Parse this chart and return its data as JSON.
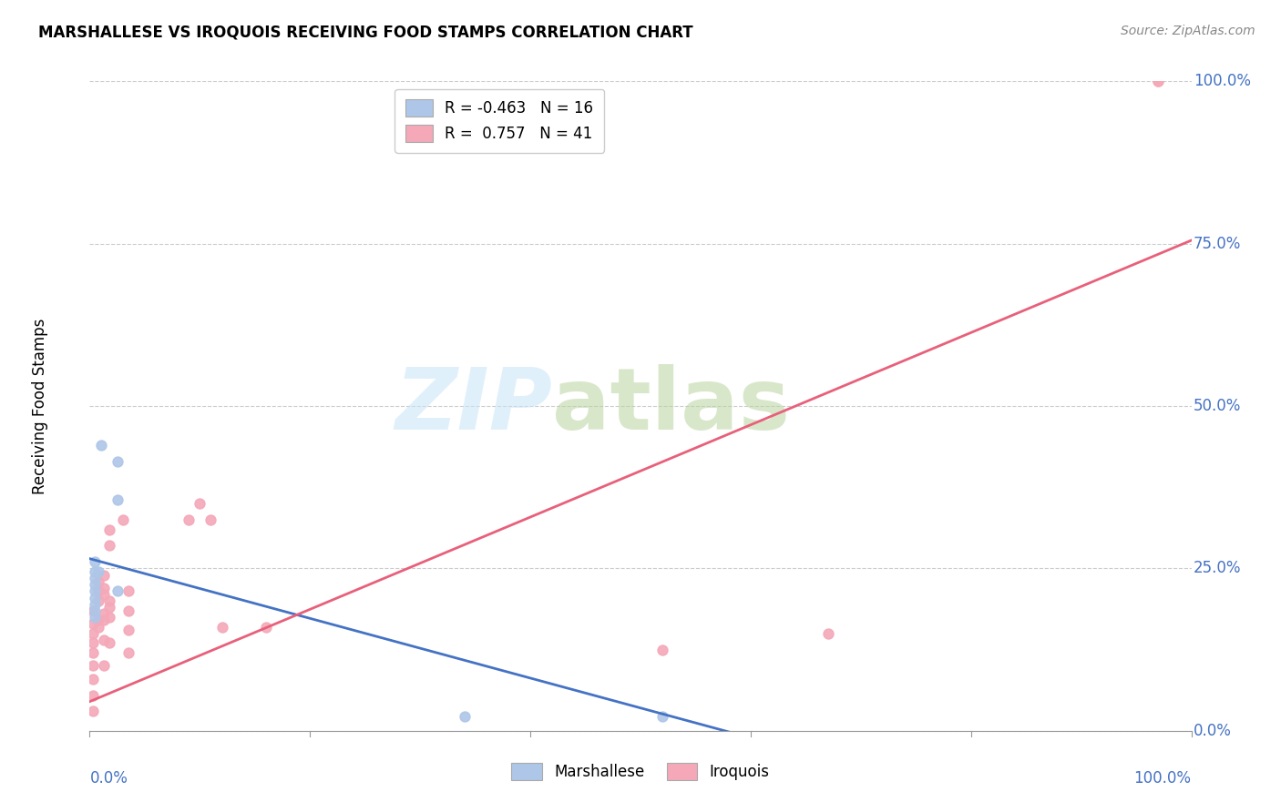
{
  "title": "MARSHALLESE VS IROQUOIS RECEIVING FOOD STAMPS CORRELATION CHART",
  "source": "Source: ZipAtlas.com",
  "ylabel": "Receiving Food Stamps",
  "ytick_values": [
    0.0,
    0.25,
    0.5,
    0.75,
    1.0
  ],
  "ytick_labels": [
    "0.0%",
    "25.0%",
    "50.0%",
    "75.0%",
    "100.0%"
  ],
  "legend_marshallese": "R = -0.463   N = 16",
  "legend_iroquois": "R =  0.757   N = 41",
  "marshallese_color": "#aec6e8",
  "iroquois_color": "#f4a8b8",
  "marshallese_line_color": "#4472c4",
  "iroquois_line_color": "#e8607a",
  "background_color": "#ffffff",
  "marshallese_points": [
    [
      0.005,
      0.245
    ],
    [
      0.005,
      0.235
    ],
    [
      0.005,
      0.225
    ],
    [
      0.005,
      0.215
    ],
    [
      0.005,
      0.205
    ],
    [
      0.005,
      0.195
    ],
    [
      0.005,
      0.185
    ],
    [
      0.005,
      0.175
    ],
    [
      0.008,
      0.245
    ],
    [
      0.01,
      0.44
    ],
    [
      0.025,
      0.415
    ],
    [
      0.025,
      0.355
    ],
    [
      0.025,
      0.215
    ],
    [
      0.52,
      0.022
    ],
    [
      0.34,
      0.022
    ],
    [
      0.005,
      0.26
    ]
  ],
  "iroquois_points": [
    [
      0.003,
      0.185
    ],
    [
      0.003,
      0.165
    ],
    [
      0.003,
      0.15
    ],
    [
      0.003,
      0.135
    ],
    [
      0.003,
      0.12
    ],
    [
      0.003,
      0.1
    ],
    [
      0.003,
      0.08
    ],
    [
      0.003,
      0.055
    ],
    [
      0.003,
      0.03
    ],
    [
      0.008,
      0.23
    ],
    [
      0.008,
      0.215
    ],
    [
      0.008,
      0.2
    ],
    [
      0.008,
      0.17
    ],
    [
      0.008,
      0.16
    ],
    [
      0.013,
      0.24
    ],
    [
      0.013,
      0.22
    ],
    [
      0.013,
      0.21
    ],
    [
      0.013,
      0.18
    ],
    [
      0.013,
      0.17
    ],
    [
      0.013,
      0.14
    ],
    [
      0.013,
      0.1
    ],
    [
      0.018,
      0.31
    ],
    [
      0.018,
      0.285
    ],
    [
      0.018,
      0.2
    ],
    [
      0.018,
      0.19
    ],
    [
      0.018,
      0.175
    ],
    [
      0.018,
      0.135
    ],
    [
      0.03,
      0.325
    ],
    [
      0.035,
      0.215
    ],
    [
      0.035,
      0.185
    ],
    [
      0.035,
      0.155
    ],
    [
      0.035,
      0.12
    ],
    [
      0.09,
      0.325
    ],
    [
      0.1,
      0.35
    ],
    [
      0.11,
      0.325
    ],
    [
      0.12,
      0.16
    ],
    [
      0.16,
      0.16
    ],
    [
      0.52,
      0.125
    ],
    [
      0.67,
      0.15
    ],
    [
      0.97,
      1.0
    ],
    [
      0.97,
      1.0
    ]
  ],
  "marshallese_line": {
    "x0": 0.0,
    "y0": 0.265,
    "x1": 0.62,
    "y1": -0.02
  },
  "iroquois_line": {
    "x0": 0.0,
    "y0": 0.045,
    "x1": 1.0,
    "y1": 0.755
  },
  "xlim": [
    0.0,
    1.0
  ],
  "ylim": [
    0.0,
    1.0
  ]
}
